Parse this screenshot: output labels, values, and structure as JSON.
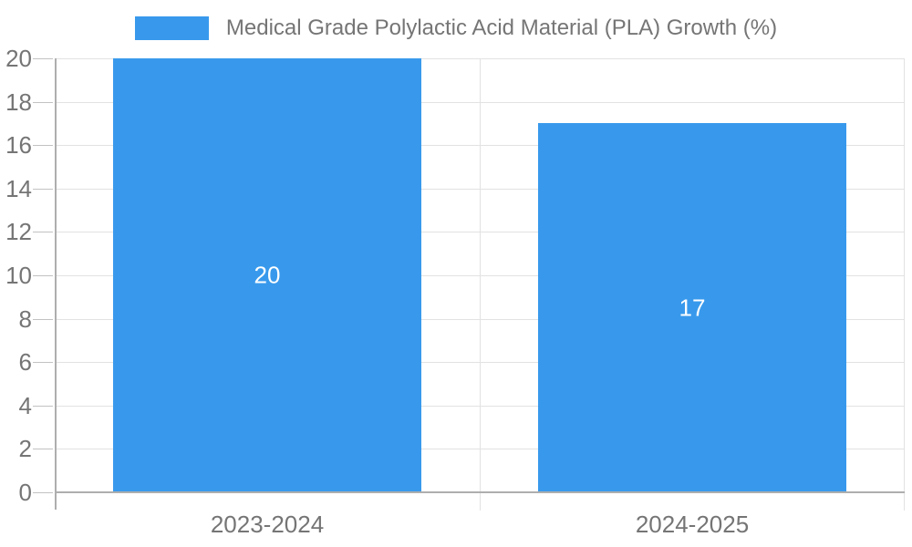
{
  "legend": {
    "label": "Medical Grade Polylactic Acid Material (PLA) Growth (%)"
  },
  "colors": {
    "bar": "#3899ec",
    "bar_label_text": "#ffffff",
    "axis_text": "#757575",
    "axis_line": "#aeaeae",
    "gridline": "#e2e2e2",
    "tick_stub": "#c2c2c2",
    "background": "#ffffff"
  },
  "chart_data": {
    "type": "bar",
    "title": "Medical Grade Polylactic Acid Material (PLA) Growth (%)",
    "categories": [
      "2023-2024",
      "2024-2025"
    ],
    "series": [
      {
        "name": "Medical Grade Polylactic Acid Material (PLA) Growth (%)",
        "values": [
          20,
          17
        ]
      }
    ],
    "bar_value_labels": [
      "20",
      "17"
    ],
    "xlabel": "",
    "ylabel": "",
    "ylim": [
      0,
      20
    ],
    "yticks": [
      0,
      2,
      4,
      6,
      8,
      10,
      12,
      14,
      16,
      18,
      20
    ],
    "grid": true,
    "legend_position": "top-center"
  }
}
